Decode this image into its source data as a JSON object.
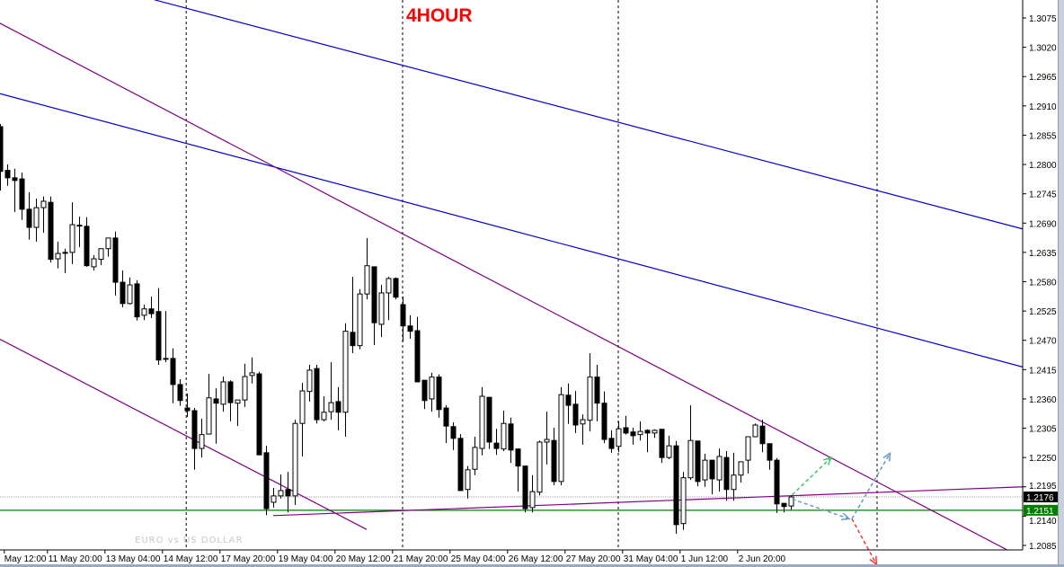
{
  "title": "4HOUR",
  "title_color": "#ff0000",
  "watermark": "EURO vs US DOLLAR",
  "chart_data": {
    "type": "candlestick",
    "title": "4HOUR",
    "ylim": [
      1.2085,
      1.3075
    ],
    "y_ticks": [
      "1.3075",
      "1.3020",
      "1.2965",
      "1.2910",
      "1.2855",
      "1.2800",
      "1.2745",
      "1.2690",
      "1.2635",
      "1.2580",
      "1.2525",
      "1.2470",
      "1.2415",
      "1.2360",
      "1.2305",
      "1.2250",
      "1.2195",
      "1.2140",
      "1.2085"
    ],
    "x_ticks": [
      {
        "bar": 0.6,
        "label": "May 12:00"
      },
      {
        "bar": 6.6,
        "label": "11 May 20:00"
      },
      {
        "bar": 14.6,
        "label": "13 May 04:00"
      },
      {
        "bar": 22.6,
        "label": "14 May 12:00"
      },
      {
        "bar": 30.6,
        "label": "17 May 20:00"
      },
      {
        "bar": 38.6,
        "label": "19 May 04:00"
      },
      {
        "bar": 46.6,
        "label": "20 May 12:00"
      },
      {
        "bar": 54.6,
        "label": "21 May 20:00"
      },
      {
        "bar": 62.6,
        "label": "25 May 04:00"
      },
      {
        "bar": 70.6,
        "label": "26 May 12:00"
      },
      {
        "bar": 78.6,
        "label": "27 May 20:00"
      },
      {
        "bar": 86.6,
        "label": "31 May 04:00"
      },
      {
        "bar": 94.6,
        "label": "1 Jun 12:00"
      },
      {
        "bar": 102.6,
        "label": "2 Jun 20:00"
      }
    ],
    "current_price": {
      "label": "1.2176",
      "value": 1.2176,
      "color": "#000000"
    },
    "level_price": {
      "label": "1.2151",
      "value": 1.2151,
      "color": "#008000"
    },
    "ohlc": [
      [
        1.2871,
        1.2876,
        1.2751,
        1.2787
      ],
      [
        1.2789,
        1.28,
        1.276,
        1.2775
      ],
      [
        1.2775,
        1.2792,
        1.2711,
        1.277
      ],
      [
        1.2773,
        1.2785,
        1.2696,
        1.2716
      ],
      [
        1.2716,
        1.2748,
        1.2659,
        1.2682
      ],
      [
        1.2682,
        1.2736,
        1.2655,
        1.2719
      ],
      [
        1.2719,
        1.274,
        1.2672,
        1.2731
      ],
      [
        1.2729,
        1.274,
        1.2616,
        1.2622
      ],
      [
        1.2623,
        1.2655,
        1.2605,
        1.2633
      ],
      [
        1.2635,
        1.2642,
        1.2596,
        1.2635
      ],
      [
        1.2635,
        1.2729,
        1.2613,
        1.2687
      ],
      [
        1.2686,
        1.2702,
        1.2645,
        1.2686
      ],
      [
        1.2684,
        1.2701,
        1.2608,
        1.261
      ],
      [
        1.2608,
        1.263,
        1.2601,
        1.2623
      ],
      [
        1.2622,
        1.2642,
        1.2611,
        1.2642
      ],
      [
        1.2642,
        1.2662,
        1.2627,
        1.2662
      ],
      [
        1.2662,
        1.2674,
        1.2554,
        1.2579
      ],
      [
        1.2579,
        1.2601,
        1.2532,
        1.2539
      ],
      [
        1.2539,
        1.2588,
        1.2537,
        1.2574
      ],
      [
        1.2576,
        1.2583,
        1.2507,
        1.2514
      ],
      [
        1.2517,
        1.2537,
        1.2508,
        1.2529
      ],
      [
        1.2529,
        1.2552,
        1.2512,
        1.252
      ],
      [
        1.2524,
        1.2568,
        1.2424,
        1.2433
      ],
      [
        1.2436,
        1.2525,
        1.2429,
        1.2436
      ],
      [
        1.2436,
        1.2455,
        1.2352,
        1.2387
      ],
      [
        1.2387,
        1.2397,
        1.2347,
        1.2357
      ],
      [
        1.2343,
        1.237,
        1.2326,
        1.2338
      ],
      [
        1.2338,
        1.2343,
        1.2227,
        1.2267
      ],
      [
        1.2267,
        1.2323,
        1.225,
        1.2293
      ],
      [
        1.2294,
        1.2407,
        1.2294,
        1.2362
      ],
      [
        1.236,
        1.238,
        1.2276,
        1.2352
      ],
      [
        1.235,
        1.2402,
        1.2336,
        1.2392
      ],
      [
        1.2392,
        1.2395,
        1.2318,
        1.2353
      ],
      [
        1.2352,
        1.2358,
        1.2309,
        1.2358
      ],
      [
        1.2358,
        1.2426,
        1.2345,
        1.2402
      ],
      [
        1.2404,
        1.2438,
        1.2389,
        1.2409
      ],
      [
        1.2407,
        1.2411,
        1.2255,
        1.2255
      ],
      [
        1.2259,
        1.2272,
        1.2142,
        1.2154
      ],
      [
        1.2166,
        1.2193,
        1.2156,
        1.2178
      ],
      [
        1.2178,
        1.2218,
        1.2173,
        1.2188
      ],
      [
        1.219,
        1.2223,
        1.2147,
        1.2178
      ],
      [
        1.2178,
        1.2321,
        1.2161,
        1.2314
      ],
      [
        1.2314,
        1.239,
        1.2252,
        1.2375
      ],
      [
        1.2374,
        1.2424,
        1.2355,
        1.2414
      ],
      [
        1.2417,
        1.2424,
        1.2314,
        1.2321
      ],
      [
        1.2321,
        1.2365,
        1.2318,
        1.2335
      ],
      [
        1.2336,
        1.2429,
        1.2321,
        1.2353
      ],
      [
        1.2355,
        1.2382,
        1.2301,
        1.2335
      ],
      [
        1.2335,
        1.2502,
        1.2289,
        1.2487
      ],
      [
        1.2485,
        1.2589,
        1.2446,
        1.246
      ],
      [
        1.246,
        1.2566,
        1.2453,
        1.2557
      ],
      [
        1.2557,
        1.2662,
        1.2547,
        1.261
      ],
      [
        1.2608,
        1.2608,
        1.2461,
        1.2503
      ],
      [
        1.25,
        1.2574,
        1.2476,
        1.2559
      ],
      [
        1.2559,
        1.2589,
        1.2508,
        1.2586
      ],
      [
        1.2586,
        1.2588,
        1.2547,
        1.2551
      ],
      [
        1.2537,
        1.2552,
        1.2468,
        1.2497
      ],
      [
        1.2497,
        1.2517,
        1.2473,
        1.2487
      ],
      [
        1.2488,
        1.2514,
        1.2392,
        1.2392
      ],
      [
        1.2395,
        1.2395,
        1.2341,
        1.2357
      ],
      [
        1.236,
        1.2409,
        1.2336,
        1.2401
      ],
      [
        1.2401,
        1.2406,
        1.2325,
        1.234
      ],
      [
        1.2343,
        1.2348,
        1.2277,
        1.2309
      ],
      [
        1.2308,
        1.2316,
        1.2264,
        1.2286
      ],
      [
        1.2286,
        1.2294,
        1.2188,
        1.2188
      ],
      [
        1.219,
        1.2234,
        1.2173,
        1.2227
      ],
      [
        1.2228,
        1.2289,
        1.2217,
        1.2269
      ],
      [
        1.2267,
        1.2382,
        1.2254,
        1.2365
      ],
      [
        1.2363,
        1.2363,
        1.2266,
        1.2279
      ],
      [
        1.2277,
        1.2304,
        1.2255,
        1.2267
      ],
      [
        1.2266,
        1.2338,
        1.2262,
        1.2314
      ],
      [
        1.2313,
        1.2325,
        1.224,
        1.2264
      ],
      [
        1.2266,
        1.2267,
        1.2186,
        1.2234
      ],
      [
        1.2234,
        1.2234,
        1.2147,
        1.2154
      ],
      [
        1.2156,
        1.2217,
        1.2147,
        1.2186
      ],
      [
        1.2185,
        1.2282,
        1.2179,
        1.2279
      ],
      [
        1.2279,
        1.2336,
        1.2237,
        1.2284
      ],
      [
        1.2282,
        1.2306,
        1.2198,
        1.2205
      ],
      [
        1.2205,
        1.2382,
        1.2198,
        1.2368
      ],
      [
        1.2367,
        1.2389,
        1.2313,
        1.2348
      ],
      [
        1.235,
        1.2375,
        1.2296,
        1.2311
      ],
      [
        1.2313,
        1.2331,
        1.2274,
        1.2321
      ],
      [
        1.232,
        1.2446,
        1.2299,
        1.2401
      ],
      [
        1.2401,
        1.2424,
        1.2318,
        1.2352
      ],
      [
        1.2352,
        1.2374,
        1.2277,
        1.2284
      ],
      [
        1.2286,
        1.2301,
        1.2259,
        1.2267
      ],
      [
        1.2271,
        1.2318,
        1.226,
        1.2304
      ],
      [
        1.2306,
        1.2328,
        1.2293,
        1.2296
      ],
      [
        1.2298,
        1.2306,
        1.2274,
        1.2291
      ],
      [
        1.2293,
        1.2318,
        1.2282,
        1.2299
      ],
      [
        1.2301,
        1.2303,
        1.226,
        1.2296
      ],
      [
        1.2296,
        1.2303,
        1.2287,
        1.2301
      ],
      [
        1.2303,
        1.2303,
        1.224,
        1.225
      ],
      [
        1.225,
        1.2291,
        1.2247,
        1.2272
      ],
      [
        1.2272,
        1.2281,
        1.2107,
        1.2124
      ],
      [
        1.2126,
        1.2223,
        1.2114,
        1.2212
      ],
      [
        1.2212,
        1.2348,
        1.2208,
        1.2282
      ],
      [
        1.2281,
        1.2281,
        1.2196,
        1.2205
      ],
      [
        1.2208,
        1.2257,
        1.2195,
        1.2245
      ],
      [
        1.2245,
        1.2245,
        1.2181,
        1.221
      ],
      [
        1.2208,
        1.2267,
        1.2186,
        1.2252
      ],
      [
        1.225,
        1.2262,
        1.2169,
        1.219
      ],
      [
        1.219,
        1.2259,
        1.2169,
        1.2217
      ],
      [
        1.2217,
        1.2242,
        1.2203,
        1.2242
      ],
      [
        1.2245,
        1.2289,
        1.222,
        1.2289
      ],
      [
        1.2289,
        1.2314,
        1.2289,
        1.2311
      ],
      [
        1.2309,
        1.2321,
        1.226,
        1.2276
      ],
      [
        1.2276,
        1.2276,
        1.2227,
        1.2245
      ],
      [
        1.2245,
        1.2249,
        1.2146,
        1.2163
      ],
      [
        1.2164,
        1.2164,
        1.2147,
        1.2158
      ],
      [
        1.2159,
        1.2179,
        1.2152,
        1.2176
      ]
    ],
    "separators_bar": [
      25.9,
      56,
      86,
      122
    ],
    "trendlines": [
      {
        "color": "#0000cc",
        "from": [
          21.5,
          1.3109
        ],
        "to": [
          142.25,
          1.2679
        ]
      },
      {
        "color": "#0000cc",
        "from": [
          0,
          1.2933
        ],
        "to": [
          142.25,
          1.242
        ]
      },
      {
        "color": "#800080",
        "from": [
          0,
          1.3065
        ],
        "to": [
          140.6,
          1.2073
        ]
      },
      {
        "color": "#800080",
        "from": [
          0,
          1.2472
        ],
        "to": [
          51,
          1.2115
        ]
      },
      {
        "color": "#800080",
        "from": [
          38,
          1.2141
        ],
        "to": [
          142.25,
          1.2195
        ]
      }
    ],
    "arrows": [
      {
        "color": "#33cc66",
        "from": [
          110.2,
          1.218
        ],
        "to": [
          115.6,
          1.225
        ]
      },
      {
        "color": "#6699cc",
        "from": [
          110.2,
          1.2172
        ],
        "to": [
          118.1,
          1.2135
        ]
      },
      {
        "color": "#6699cc",
        "from": [
          118.5,
          1.2135
        ],
        "to": [
          123.8,
          1.2258
        ]
      },
      {
        "color": "#ff3333",
        "from": [
          118.5,
          1.2135
        ],
        "to": [
          121.9,
          1.205
        ]
      }
    ]
  }
}
